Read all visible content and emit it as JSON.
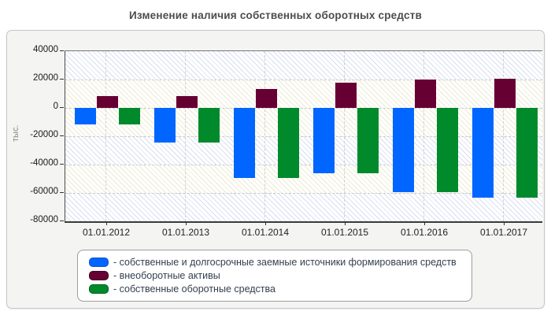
{
  "chart_data": {
    "type": "bar",
    "title": "Изменение наличия собственных оборотных средств",
    "ylabel": "тыс.",
    "xlabel": "",
    "ylim": [
      -80000,
      40000
    ],
    "ytick_step": 20000,
    "yticks": [
      40000,
      20000,
      0,
      -20000,
      -40000,
      -60000,
      -80000
    ],
    "grid": "dashed-horizontal-and-vertical",
    "legend_position": "bottom",
    "categories": [
      "01.01.2012",
      "01.01.2013",
      "01.01.2014",
      "01.01.2015",
      "01.01.2016",
      "01.01.2017"
    ],
    "series": [
      {
        "name": "собственные и долгосрочные заемные источники формирования средств",
        "legend_label": "- собственные и долгосрочные заемные источники формирования средств",
        "color": "#0066FF",
        "border_color": "#1155CC",
        "values": [
          -11500,
          -24700,
          -49300,
          -46100,
          -59200,
          -63200
        ]
      },
      {
        "name": "внеоборотные активы",
        "legend_label": "- внеоборотные активы",
        "color": "#660033",
        "border_color": "#40001F",
        "values": [
          8300,
          8300,
          13200,
          17800,
          19800,
          20500
        ]
      },
      {
        "name": "собственные оборотные средства",
        "legend_label": "- собственные оборотные средства",
        "color": "#008A2B",
        "border_color": "#00601E",
        "values": [
          -11500,
          -24700,
          -49300,
          -46100,
          -59200,
          -63200
        ]
      }
    ]
  }
}
